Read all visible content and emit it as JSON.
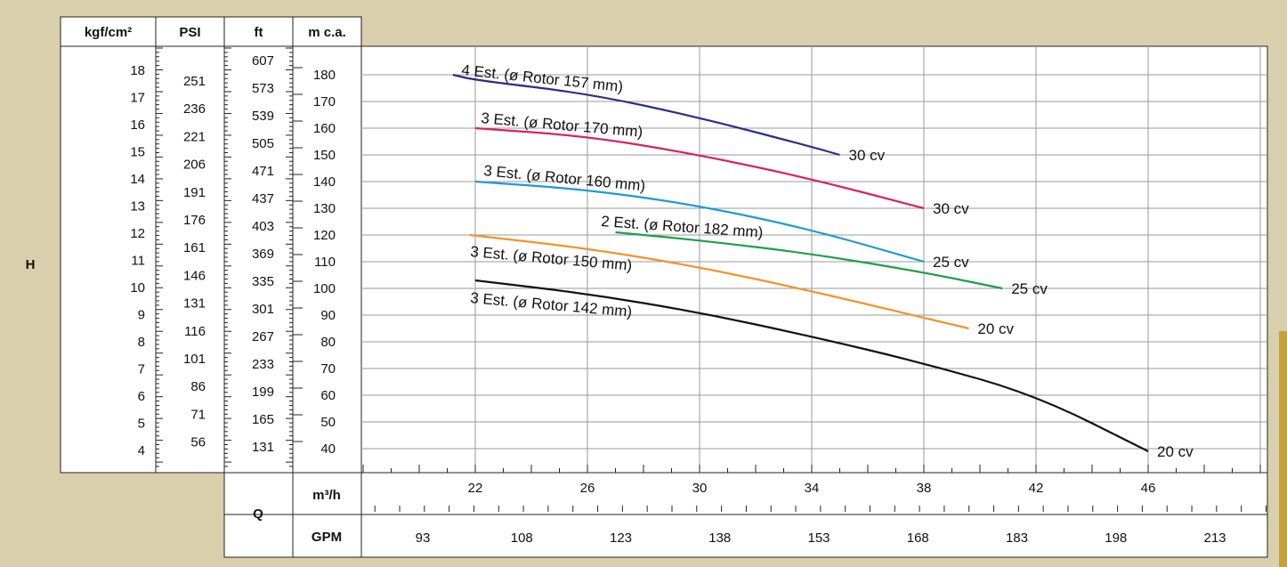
{
  "colors": {
    "background": "#d9cfad",
    "panel": "#ffffff",
    "accent_bar": "#c9a133",
    "series": [
      "#2b2f86",
      "#d6245e",
      "#1d9ad6",
      "#1e9e4a",
      "#f1942a",
      "#111111"
    ]
  },
  "h_label": "H",
  "q_label": "Q",
  "scale_columns": [
    {
      "header": "kgf/cm²",
      "labels": [
        "18",
        "17",
        "16",
        "15",
        "14",
        "13",
        "12",
        "11",
        "10",
        "9",
        "8",
        "7",
        "6",
        "5",
        "4"
      ]
    },
    {
      "header": "PSI",
      "labels": [
        "251",
        "236",
        "221",
        "206",
        "191",
        "176",
        "161",
        "146",
        "131",
        "116",
        "101",
        "86",
        "71",
        "56"
      ]
    },
    {
      "header": "ft",
      "labels": [
        "607",
        "573",
        "539",
        "505",
        "471",
        "437",
        "403",
        "369",
        "335",
        "301",
        "267",
        "233",
        "199",
        "165",
        "131"
      ]
    },
    {
      "header": "m c.a.",
      "labels": [
        "180",
        "170",
        "160",
        "150",
        "140",
        "130",
        "120",
        "110",
        "100",
        "90",
        "80",
        "70",
        "60",
        "50",
        "40"
      ]
    }
  ],
  "flow_rows": [
    {
      "unit": "m³/h",
      "labels": [
        "22",
        "26",
        "30",
        "34",
        "38",
        "42",
        "46"
      ]
    },
    {
      "unit": "GPM",
      "labels": [
        "93",
        "108",
        "123",
        "138",
        "153",
        "168",
        "183",
        "198",
        "213"
      ]
    }
  ],
  "chart_data": {
    "type": "line",
    "xlabel": "Q",
    "ylabel": "H",
    "x_unit": "m³/h",
    "y_unit": "m c.a.",
    "xlim": [
      18,
      50.5
    ],
    "ylim": [
      33,
      188
    ],
    "grid": true,
    "series": [
      {
        "name": "4 Est. (ø Rotor 157 mm)",
        "power": "30 cv",
        "x": [
          21.2,
          22,
          26,
          30,
          34,
          35.0
        ],
        "y": [
          180,
          178,
          173,
          164,
          153,
          150
        ]
      },
      {
        "name": "3 Est. (ø Rotor 170 mm)",
        "power": "30 cv",
        "x": [
          22.0,
          26,
          30,
          34,
          38.0
        ],
        "y": [
          160,
          157,
          150,
          141,
          130
        ]
      },
      {
        "name": "3 Est. (ø Rotor 160 mm)",
        "power": "25 cv",
        "x": [
          22.0,
          26,
          30,
          34,
          38.0
        ],
        "y": [
          140,
          137,
          131,
          122,
          110
        ]
      },
      {
        "name": "2 Est. (ø Rotor 182 mm)",
        "power": "25 cv",
        "x": [
          27.0,
          30,
          34,
          38,
          40.8
        ],
        "y": [
          121,
          118,
          113,
          106,
          100
        ]
      },
      {
        "name": "3 Est. (ø Rotor 150 mm)",
        "power": "20 cv",
        "x": [
          21.8,
          26,
          30,
          34,
          38,
          39.6
        ],
        "y": [
          120,
          115,
          108,
          99,
          89,
          85
        ]
      },
      {
        "name": "3 Est. (ø Rotor 142 mm)",
        "power": "20 cv",
        "x": [
          22.0,
          26,
          30,
          34,
          38,
          42,
          46
        ],
        "y": [
          103,
          98,
          91,
          82,
          72,
          60,
          39
        ]
      }
    ]
  }
}
